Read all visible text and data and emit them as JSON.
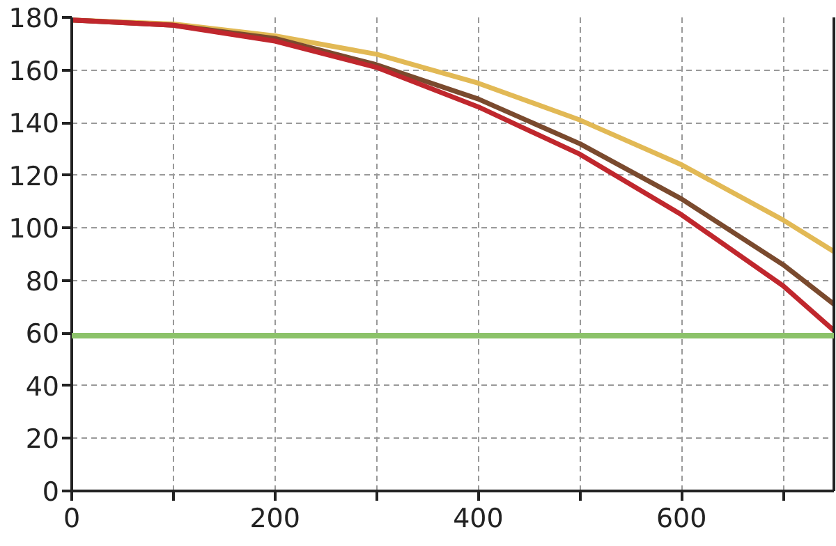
{
  "chart_data": {
    "type": "line",
    "x": [
      0,
      100,
      200,
      300,
      400,
      500,
      600,
      700,
      750
    ],
    "series": [
      {
        "color": "#e2b955",
        "values": [
          179,
          177.5,
          173,
          166,
          155,
          141,
          124,
          103,
          91
        ]
      },
      {
        "color": "#7a4a2e",
        "values": [
          179,
          177,
          172,
          162,
          149,
          132,
          111,
          86,
          71
        ]
      },
      {
        "color": "#c0272d",
        "values": [
          179,
          177,
          171,
          161,
          146,
          128,
          105,
          78,
          61
        ]
      }
    ],
    "ref_lines": [
      {
        "axis": "y",
        "value": 59,
        "color": "#8cc26a",
        "line_style": "solid"
      }
    ],
    "xlim": [
      0,
      750
    ],
    "ylim": [
      0,
      180
    ],
    "xticks": [
      0,
      {
        "value": 100,
        "label": null
      },
      200,
      {
        "value": 300,
        "label": null
      },
      400,
      {
        "value": 500,
        "label": null
      },
      600,
      {
        "value": 700,
        "label": null
      }
    ],
    "yticks": [
      0,
      20,
      40,
      60,
      80,
      100,
      120,
      140,
      160,
      180
    ],
    "grid": true,
    "marker": "none",
    "line_style": "solid"
  }
}
